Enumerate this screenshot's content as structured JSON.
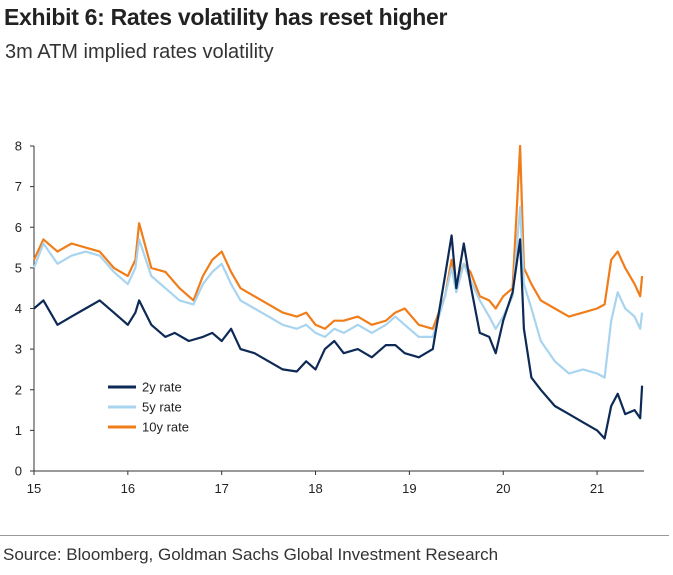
{
  "header": {
    "title": "Exhibit 6: Rates volatility has reset higher",
    "subtitle": "3m ATM implied rates volatility"
  },
  "footer": {
    "source": "Source: Bloomberg, Goldman Sachs Global Investment Research"
  },
  "chart_data": {
    "type": "line",
    "title": "Exhibit 6: Rates volatility has reset higher",
    "subtitle": "3m ATM implied rates volatility",
    "xlabel": "",
    "ylabel": "",
    "xlim": [
      2015,
      2021.5
    ],
    "ylim": [
      0,
      8
    ],
    "x_ticks": [
      2015,
      2016,
      2017,
      2018,
      2019,
      2020,
      2021
    ],
    "x_tick_labels": [
      "15",
      "16",
      "17",
      "18",
      "19",
      "20",
      "21"
    ],
    "y_ticks": [
      0,
      1,
      2,
      3,
      4,
      5,
      6,
      7,
      8
    ],
    "y_tick_labels": [
      "0",
      "1",
      "2",
      "3",
      "4",
      "5",
      "6",
      "7",
      "8"
    ],
    "grid": false,
    "legend_position": "lower-left",
    "series": [
      {
        "name": "2y rate",
        "color": "#0d2a56",
        "points": [
          [
            2015.0,
            4.0
          ],
          [
            2015.1,
            4.2
          ],
          [
            2015.25,
            3.6
          ],
          [
            2015.4,
            3.8
          ],
          [
            2015.55,
            4.0
          ],
          [
            2015.7,
            4.2
          ],
          [
            2015.85,
            3.9
          ],
          [
            2016.0,
            3.6
          ],
          [
            2016.08,
            3.9
          ],
          [
            2016.12,
            4.2
          ],
          [
            2016.25,
            3.6
          ],
          [
            2016.4,
            3.3
          ],
          [
            2016.5,
            3.4
          ],
          [
            2016.65,
            3.2
          ],
          [
            2016.8,
            3.3
          ],
          [
            2016.9,
            3.4
          ],
          [
            2017.0,
            3.2
          ],
          [
            2017.1,
            3.5
          ],
          [
            2017.2,
            3.0
          ],
          [
            2017.35,
            2.9
          ],
          [
            2017.5,
            2.7
          ],
          [
            2017.65,
            2.5
          ],
          [
            2017.8,
            2.45
          ],
          [
            2017.9,
            2.7
          ],
          [
            2018.0,
            2.5
          ],
          [
            2018.1,
            3.0
          ],
          [
            2018.2,
            3.2
          ],
          [
            2018.3,
            2.9
          ],
          [
            2018.45,
            3.0
          ],
          [
            2018.6,
            2.8
          ],
          [
            2018.75,
            3.1
          ],
          [
            2018.85,
            3.1
          ],
          [
            2018.95,
            2.9
          ],
          [
            2019.1,
            2.8
          ],
          [
            2019.25,
            3.0
          ],
          [
            2019.38,
            4.8
          ],
          [
            2019.45,
            5.8
          ],
          [
            2019.5,
            4.5
          ],
          [
            2019.58,
            5.6
          ],
          [
            2019.65,
            4.6
          ],
          [
            2019.75,
            3.4
          ],
          [
            2019.85,
            3.3
          ],
          [
            2019.92,
            2.9
          ],
          [
            2020.0,
            3.7
          ],
          [
            2020.1,
            4.4
          ],
          [
            2020.18,
            5.7
          ],
          [
            2020.22,
            3.5
          ],
          [
            2020.3,
            2.3
          ],
          [
            2020.4,
            2.0
          ],
          [
            2020.55,
            1.6
          ],
          [
            2020.7,
            1.4
          ],
          [
            2020.85,
            1.2
          ],
          [
            2021.0,
            1.0
          ],
          [
            2021.08,
            0.8
          ],
          [
            2021.15,
            1.6
          ],
          [
            2021.22,
            1.9
          ],
          [
            2021.3,
            1.4
          ],
          [
            2021.4,
            1.5
          ],
          [
            2021.46,
            1.3
          ],
          [
            2021.48,
            2.1
          ]
        ]
      },
      {
        "name": "5y rate",
        "color": "#a8d4ef",
        "points": [
          [
            2015.0,
            5.0
          ],
          [
            2015.1,
            5.6
          ],
          [
            2015.25,
            5.1
          ],
          [
            2015.4,
            5.3
          ],
          [
            2015.55,
            5.4
          ],
          [
            2015.7,
            5.3
          ],
          [
            2015.85,
            4.9
          ],
          [
            2016.0,
            4.6
          ],
          [
            2016.08,
            5.0
          ],
          [
            2016.12,
            5.7
          ],
          [
            2016.25,
            4.8
          ],
          [
            2016.4,
            4.5
          ],
          [
            2016.55,
            4.2
          ],
          [
            2016.7,
            4.1
          ],
          [
            2016.8,
            4.6
          ],
          [
            2016.9,
            4.9
          ],
          [
            2017.0,
            5.1
          ],
          [
            2017.1,
            4.6
          ],
          [
            2017.2,
            4.2
          ],
          [
            2017.35,
            4.0
          ],
          [
            2017.5,
            3.8
          ],
          [
            2017.65,
            3.6
          ],
          [
            2017.8,
            3.5
          ],
          [
            2017.9,
            3.6
          ],
          [
            2018.0,
            3.4
          ],
          [
            2018.1,
            3.3
          ],
          [
            2018.2,
            3.5
          ],
          [
            2018.3,
            3.4
          ],
          [
            2018.45,
            3.6
          ],
          [
            2018.6,
            3.4
          ],
          [
            2018.75,
            3.6
          ],
          [
            2018.85,
            3.8
          ],
          [
            2018.95,
            3.6
          ],
          [
            2019.1,
            3.3
          ],
          [
            2019.25,
            3.3
          ],
          [
            2019.38,
            4.3
          ],
          [
            2019.45,
            5.0
          ],
          [
            2019.5,
            4.4
          ],
          [
            2019.58,
            5.1
          ],
          [
            2019.65,
            4.7
          ],
          [
            2019.75,
            4.2
          ],
          [
            2019.85,
            3.8
          ],
          [
            2019.92,
            3.5
          ],
          [
            2020.0,
            3.8
          ],
          [
            2020.1,
            4.3
          ],
          [
            2020.18,
            6.5
          ],
          [
            2020.22,
            4.6
          ],
          [
            2020.3,
            4.0
          ],
          [
            2020.4,
            3.2
          ],
          [
            2020.55,
            2.7
          ],
          [
            2020.7,
            2.4
          ],
          [
            2020.85,
            2.5
          ],
          [
            2021.0,
            2.4
          ],
          [
            2021.08,
            2.3
          ],
          [
            2021.15,
            3.7
          ],
          [
            2021.22,
            4.4
          ],
          [
            2021.3,
            4.0
          ],
          [
            2021.4,
            3.8
          ],
          [
            2021.46,
            3.5
          ],
          [
            2021.48,
            3.9
          ]
        ]
      },
      {
        "name": "10y rate",
        "color": "#f07d1a",
        "points": [
          [
            2015.0,
            5.2
          ],
          [
            2015.1,
            5.7
          ],
          [
            2015.25,
            5.4
          ],
          [
            2015.4,
            5.6
          ],
          [
            2015.55,
            5.5
          ],
          [
            2015.7,
            5.4
          ],
          [
            2015.85,
            5.0
          ],
          [
            2016.0,
            4.8
          ],
          [
            2016.08,
            5.2
          ],
          [
            2016.12,
            6.1
          ],
          [
            2016.25,
            5.0
          ],
          [
            2016.4,
            4.9
          ],
          [
            2016.55,
            4.5
          ],
          [
            2016.7,
            4.2
          ],
          [
            2016.8,
            4.8
          ],
          [
            2016.9,
            5.2
          ],
          [
            2017.0,
            5.4
          ],
          [
            2017.1,
            4.9
          ],
          [
            2017.2,
            4.5
          ],
          [
            2017.35,
            4.3
          ],
          [
            2017.5,
            4.1
          ],
          [
            2017.65,
            3.9
          ],
          [
            2017.8,
            3.8
          ],
          [
            2017.9,
            3.9
          ],
          [
            2018.0,
            3.6
          ],
          [
            2018.1,
            3.5
          ],
          [
            2018.2,
            3.7
          ],
          [
            2018.3,
            3.7
          ],
          [
            2018.45,
            3.8
          ],
          [
            2018.6,
            3.6
          ],
          [
            2018.75,
            3.7
          ],
          [
            2018.85,
            3.9
          ],
          [
            2018.95,
            4.0
          ],
          [
            2019.1,
            3.6
          ],
          [
            2019.25,
            3.5
          ],
          [
            2019.38,
            4.3
          ],
          [
            2019.45,
            5.2
          ],
          [
            2019.5,
            4.6
          ],
          [
            2019.58,
            5.1
          ],
          [
            2019.65,
            4.9
          ],
          [
            2019.75,
            4.3
          ],
          [
            2019.85,
            4.2
          ],
          [
            2019.92,
            4.0
          ],
          [
            2020.0,
            4.3
          ],
          [
            2020.1,
            4.5
          ],
          [
            2020.18,
            8.0
          ],
          [
            2020.22,
            5.0
          ],
          [
            2020.3,
            4.6
          ],
          [
            2020.4,
            4.2
          ],
          [
            2020.55,
            4.0
          ],
          [
            2020.7,
            3.8
          ],
          [
            2020.85,
            3.9
          ],
          [
            2021.0,
            4.0
          ],
          [
            2021.08,
            4.1
          ],
          [
            2021.15,
            5.2
          ],
          [
            2021.22,
            5.4
          ],
          [
            2021.3,
            5.0
          ],
          [
            2021.4,
            4.6
          ],
          [
            2021.46,
            4.3
          ],
          [
            2021.48,
            4.8
          ]
        ]
      }
    ]
  }
}
